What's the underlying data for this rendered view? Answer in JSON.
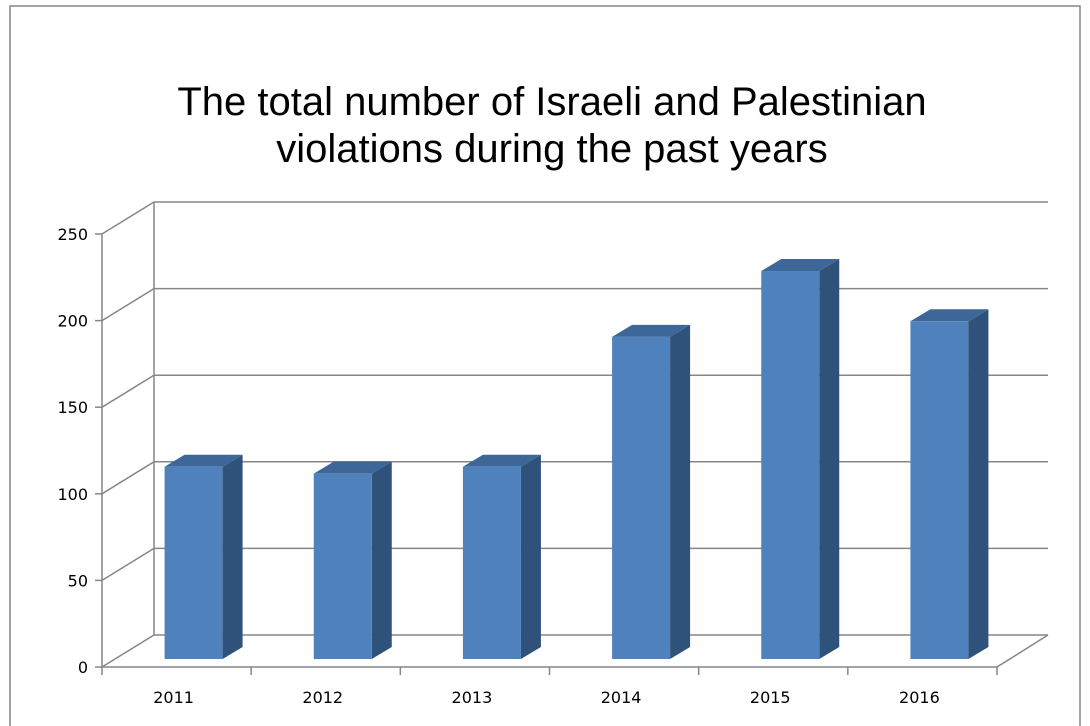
{
  "chart_data": {
    "type": "bar",
    "style": "3d-column",
    "title_lines": [
      "The total number of Israeli and Palestinian",
      "violations during the past years"
    ],
    "categories": [
      "2011",
      "2012",
      "2013",
      "2014",
      "2015",
      "2016"
    ],
    "values": [
      111,
      107,
      111,
      186,
      224,
      195
    ],
    "y_ticks": [
      "0",
      "50",
      "100",
      "150",
      "200",
      "250"
    ],
    "ylim": [
      0,
      250
    ],
    "grid": true,
    "legend": "none",
    "colors": {
      "bar_front": "#4f81bd",
      "bar_side": "#2f527a",
      "bar_top": "#3d6699",
      "grid": "#868686",
      "frame": "#868686"
    }
  }
}
